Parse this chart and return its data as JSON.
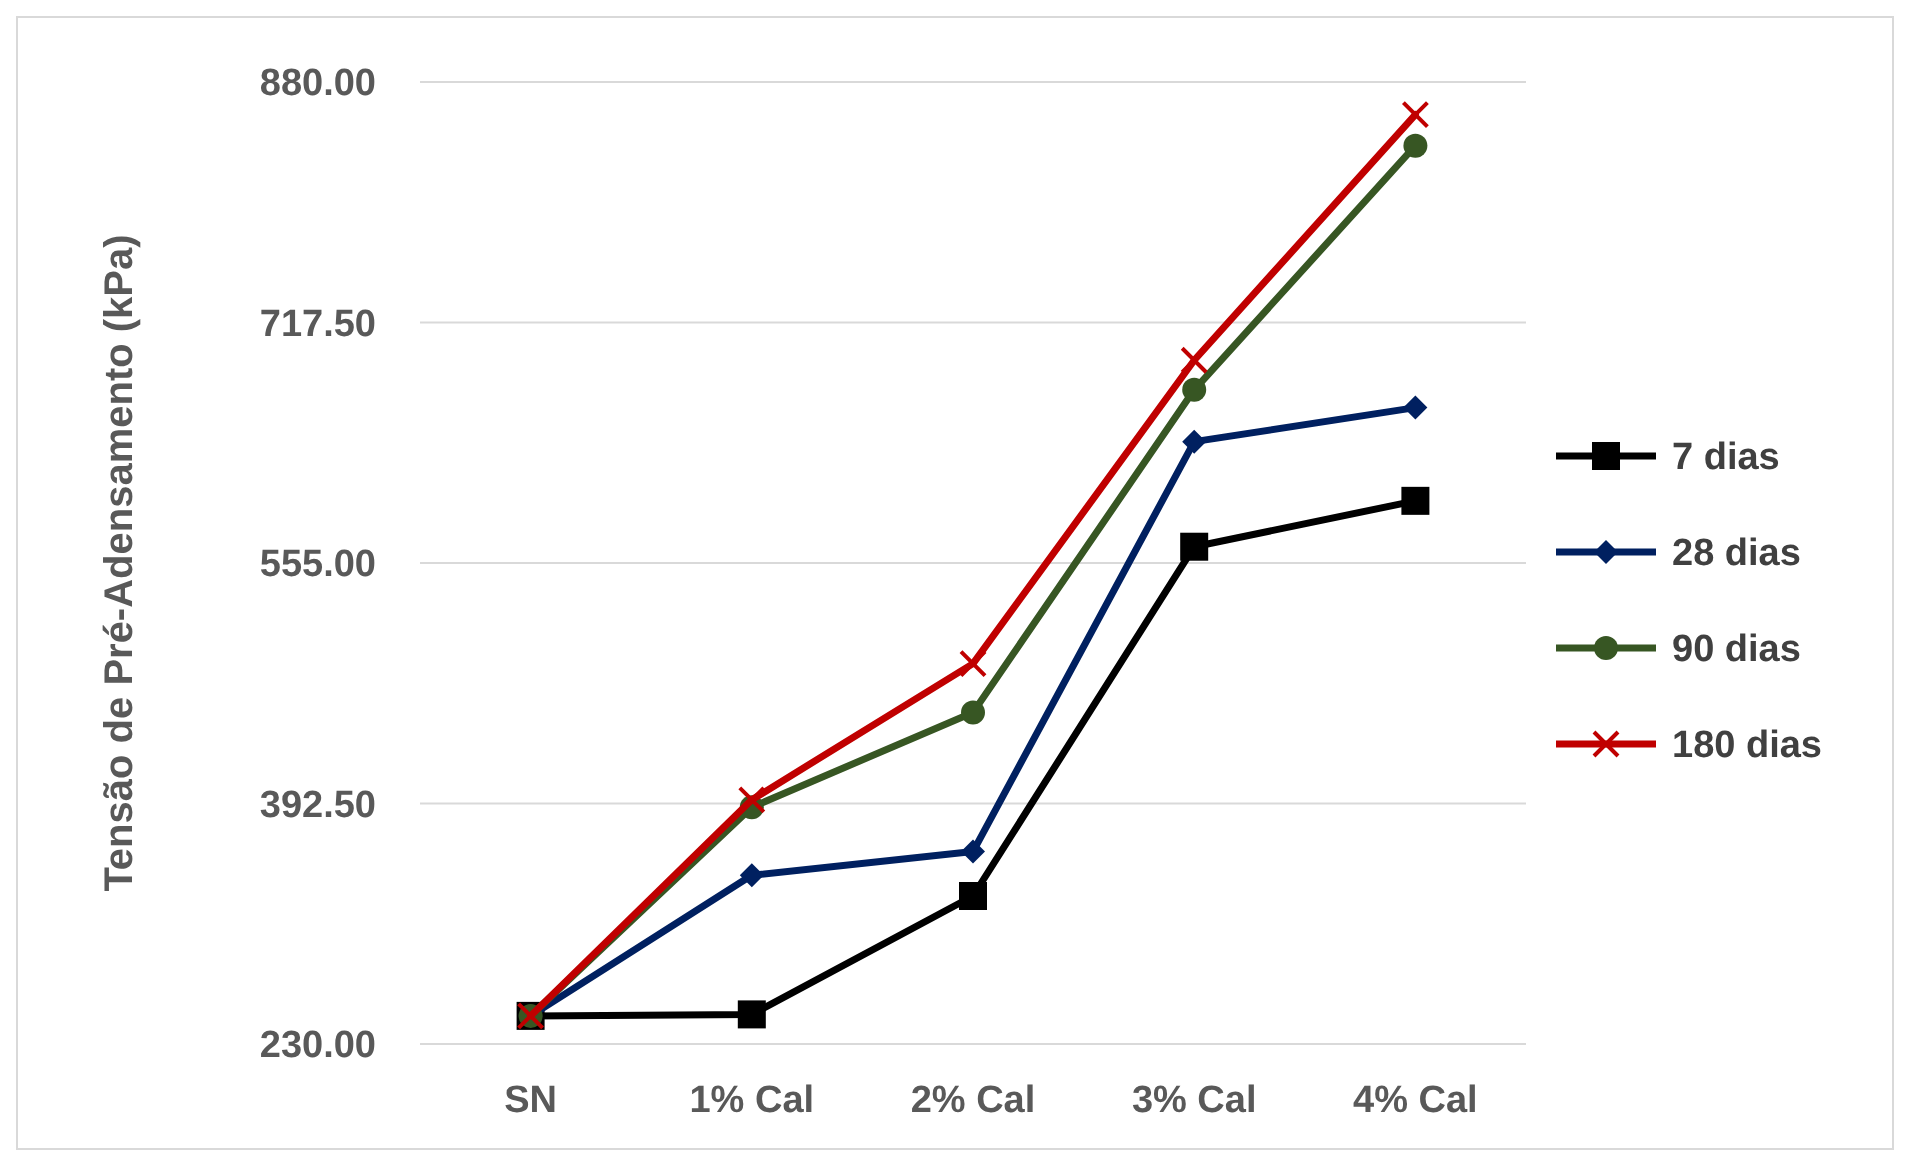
{
  "chart_data": {
    "type": "line",
    "ylabel": "Tensão de Pré-Adensamento  (kPa)",
    "categories": [
      "SN",
      "1% Cal",
      "2% Cal",
      "3% Cal",
      "4% Cal"
    ],
    "ylim": [
      230,
      880
    ],
    "yticks": [
      {
        "value": 230,
        "label": "230.00"
      },
      {
        "value": 392.5,
        "label": "392.50"
      },
      {
        "value": 555,
        "label": "555.00"
      },
      {
        "value": 717.5,
        "label": "717.50"
      },
      {
        "value": 880,
        "label": "880.00"
      }
    ],
    "grid": "y",
    "legend": "right",
    "series": [
      {
        "name": "7 dias",
        "color": "#000000",
        "marker": "square",
        "values": [
          249,
          250,
          330,
          566,
          597
        ]
      },
      {
        "name": "28 dias",
        "color": "#002060",
        "marker": "diamond",
        "values": [
          249,
          344,
          360,
          637,
          660
        ]
      },
      {
        "name": "90 dias",
        "color": "#375623",
        "marker": "circle",
        "values": [
          249,
          390,
          454,
          672,
          837
        ]
      },
      {
        "name": "180 dias",
        "color": "#c00000",
        "marker": "cross",
        "values": [
          249,
          395,
          487,
          692,
          858
        ]
      }
    ]
  }
}
